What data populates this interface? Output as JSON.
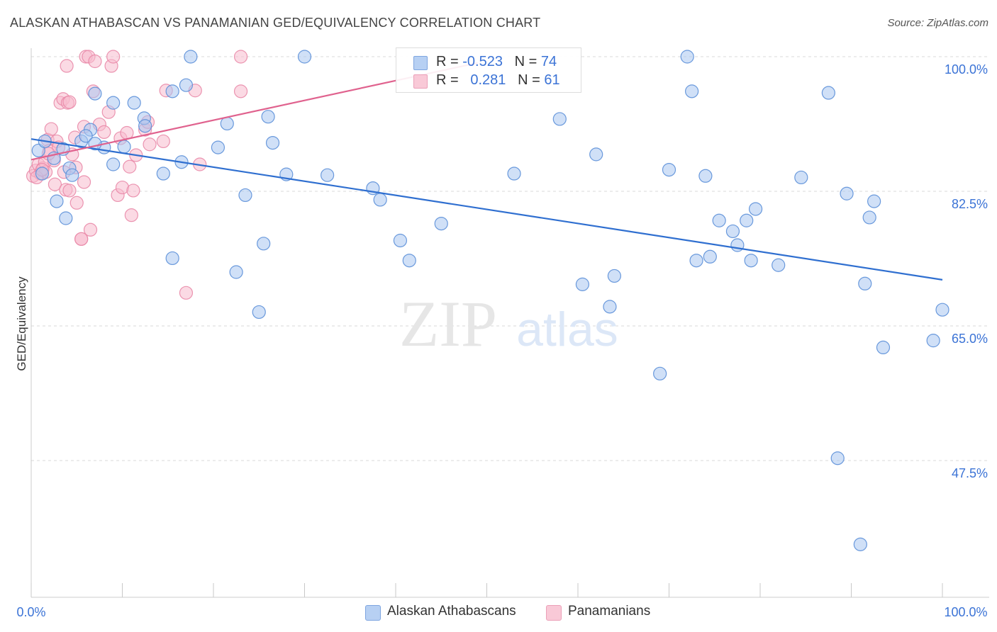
{
  "title": "ALASKAN ATHABASCAN VS PANAMANIAN GED/EQUIVALENCY CORRELATION CHART",
  "source": "Source: ZipAtlas.com",
  "watermark": {
    "zip": "ZIP",
    "atlas": "atlas"
  },
  "colors": {
    "blue_fill": "#a9c6f0",
    "blue_stroke": "#5b8fd8",
    "blue_line": "#2f6fd0",
    "pink_fill": "#f7bccd",
    "pink_stroke": "#e98aa8",
    "pink_line": "#e0628e",
    "axis_text": "#3b73d6",
    "grid": "#d9d9d9"
  },
  "legend": {
    "rows": [
      {
        "series": "Alaskan Athabascans",
        "r_label": "R = ",
        "r_value": "-0.523",
        "n_label": "N = ",
        "n_value": "74"
      },
      {
        "series": "Panamanians",
        "r_label": "R = ",
        "r_value": "0.281",
        "n_label": "N = ",
        "n_value": "61"
      }
    ]
  },
  "chart_data": {
    "type": "scatter",
    "title": "ALASKAN ATHABASCAN VS PANAMANIAN GED/EQUIVALENCY CORRELATION CHART",
    "xlabel": "",
    "ylabel": "GED/Equivalency",
    "xlim": [
      0,
      100
    ],
    "ylim": [
      34,
      101
    ],
    "x_tick_labels": [
      "0.0%",
      "100.0%"
    ],
    "y_ticks": [
      100.0,
      82.5,
      65.0,
      47.5
    ],
    "y_tick_labels": [
      "100.0%",
      "82.5%",
      "65.0%",
      "47.5%"
    ],
    "grid": true,
    "series": [
      {
        "name": "Alaskan Athabascans",
        "color": "#a9c6f0",
        "r": -0.523,
        "n": 74,
        "trend": {
          "x": [
            0,
            100
          ],
          "y": [
            89.3,
            71.0
          ]
        },
        "points": [
          [
            0.8,
            87.8
          ],
          [
            1.5,
            89.0
          ],
          [
            2.5,
            86.8
          ],
          [
            3.5,
            88.0
          ],
          [
            4.2,
            85.5
          ],
          [
            5.5,
            89.0
          ],
          [
            6.5,
            90.5
          ],
          [
            8.0,
            88.2
          ],
          [
            9.0,
            94.0
          ],
          [
            10.2,
            88.3
          ],
          [
            11.3,
            94.0
          ],
          [
            1.2,
            84.8
          ],
          [
            2.8,
            81.2
          ],
          [
            3.8,
            79.0
          ],
          [
            4.5,
            84.6
          ],
          [
            6.0,
            89.7
          ],
          [
            7.0,
            88.7
          ],
          [
            9.0,
            86.0
          ],
          [
            12.4,
            92.0
          ],
          [
            12.5,
            91.0
          ],
          [
            14.5,
            84.8
          ],
          [
            15.5,
            95.5
          ],
          [
            16.5,
            86.3
          ],
          [
            17.0,
            96.3
          ],
          [
            17.5,
            100.0
          ],
          [
            20.5,
            88.2
          ],
          [
            21.5,
            91.3
          ],
          [
            23.5,
            82.0
          ],
          [
            25.5,
            75.7
          ],
          [
            26.0,
            92.2
          ],
          [
            26.5,
            88.8
          ],
          [
            28.0,
            84.7
          ],
          [
            30.0,
            100.0
          ],
          [
            32.5,
            84.6
          ],
          [
            37.5,
            82.9
          ],
          [
            38.3,
            81.4
          ],
          [
            40.5,
            76.1
          ],
          [
            41.5,
            73.5
          ],
          [
            45.0,
            78.3
          ],
          [
            53.0,
            84.8
          ],
          [
            58.0,
            91.9
          ],
          [
            60.5,
            70.4
          ],
          [
            62.0,
            87.3
          ],
          [
            63.5,
            67.5
          ],
          [
            64.0,
            71.5
          ],
          [
            69.0,
            58.8
          ],
          [
            70.0,
            85.3
          ],
          [
            72.0,
            100.0
          ],
          [
            72.5,
            95.5
          ],
          [
            73.0,
            73.5
          ],
          [
            74.5,
            74.0
          ],
          [
            74.0,
            84.5
          ],
          [
            75.5,
            78.7
          ],
          [
            77.0,
            77.3
          ],
          [
            77.5,
            75.5
          ],
          [
            78.5,
            78.7
          ],
          [
            79.0,
            73.5
          ],
          [
            79.5,
            80.2
          ],
          [
            82.0,
            72.9
          ],
          [
            84.5,
            84.3
          ],
          [
            87.5,
            95.3
          ],
          [
            88.5,
            47.8
          ],
          [
            89.5,
            82.2
          ],
          [
            91.0,
            36.6
          ],
          [
            91.5,
            70.5
          ],
          [
            92.0,
            79.1
          ],
          [
            92.5,
            81.2
          ],
          [
            93.5,
            62.2
          ],
          [
            100.0,
            67.1
          ],
          [
            99.0,
            63.1
          ],
          [
            7.0,
            95.2
          ],
          [
            22.5,
            72.0
          ],
          [
            25.0,
            66.8
          ],
          [
            15.5,
            73.8
          ]
        ]
      },
      {
        "name": "Panamanians",
        "color": "#f7bccd",
        "r": 0.281,
        "n": 61,
        "trend": {
          "x": [
            0,
            49
          ],
          "y": [
            86.6,
            99.2
          ]
        },
        "points": [
          [
            0.2,
            84.5
          ],
          [
            0.5,
            85.2
          ],
          [
            0.8,
            86.0
          ],
          [
            1.0,
            84.8
          ],
          [
            1.3,
            85.5
          ],
          [
            1.5,
            86.3
          ],
          [
            1.6,
            85.0
          ],
          [
            1.8,
            89.2
          ],
          [
            2.0,
            87.8
          ],
          [
            2.2,
            90.6
          ],
          [
            2.5,
            86.5
          ],
          [
            2.6,
            83.4
          ],
          [
            2.8,
            89.0
          ],
          [
            3.0,
            88.2
          ],
          [
            3.2,
            94.0
          ],
          [
            3.5,
            94.5
          ],
          [
            3.6,
            85.0
          ],
          [
            3.8,
            82.7
          ],
          [
            4.0,
            94.0
          ],
          [
            4.2,
            82.6
          ],
          [
            4.5,
            87.3
          ],
          [
            4.8,
            89.5
          ],
          [
            4.9,
            85.6
          ],
          [
            5.0,
            81.0
          ],
          [
            5.5,
            76.3
          ],
          [
            5.8,
            83.7
          ],
          [
            5.8,
            90.9
          ],
          [
            6.0,
            100.0
          ],
          [
            6.3,
            100.0
          ],
          [
            6.5,
            77.5
          ],
          [
            6.8,
            95.5
          ],
          [
            7.0,
            99.4
          ],
          [
            7.5,
            91.2
          ],
          [
            8.0,
            90.2
          ],
          [
            8.5,
            92.8
          ],
          [
            8.8,
            98.8
          ],
          [
            9.0,
            100.0
          ],
          [
            9.5,
            82.0
          ],
          [
            9.8,
            89.4
          ],
          [
            10.0,
            83.0
          ],
          [
            10.5,
            90.1
          ],
          [
            10.8,
            85.7
          ],
          [
            11.0,
            79.4
          ],
          [
            11.2,
            82.6
          ],
          [
            11.5,
            87.2
          ],
          [
            12.5,
            90.5
          ],
          [
            12.8,
            91.5
          ],
          [
            13.0,
            88.6
          ],
          [
            14.5,
            89.0
          ],
          [
            14.8,
            95.6
          ],
          [
            17.0,
            69.3
          ],
          [
            18.0,
            95.6
          ],
          [
            18.5,
            86.0
          ],
          [
            23.0,
            100.0
          ],
          [
            23.0,
            95.5
          ],
          [
            4.2,
            94.1
          ],
          [
            0.6,
            84.3
          ],
          [
            1.2,
            85.3
          ],
          [
            1.9,
            87.4
          ],
          [
            3.9,
            98.8
          ],
          [
            5.5,
            76.3
          ]
        ]
      }
    ]
  }
}
